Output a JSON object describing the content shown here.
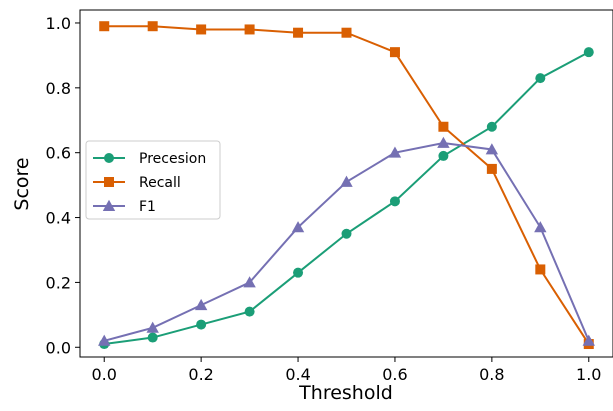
{
  "chart_data": {
    "type": "line",
    "title": "",
    "xlabel": "Threshold",
    "ylabel": "Score",
    "xlim": [
      -0.05,
      1.05
    ],
    "ylim": [
      -0.03,
      1.04
    ],
    "xticks": [
      "0.0",
      "0.2",
      "0.4",
      "0.6",
      "0.8",
      "1.0"
    ],
    "yticks": [
      "0.0",
      "0.2",
      "0.4",
      "0.6",
      "0.8",
      "1.0"
    ],
    "grid": false,
    "legend_position": "center-left",
    "x": [
      0.0,
      0.1,
      0.2,
      0.3,
      0.4,
      0.5,
      0.6,
      0.7,
      0.8,
      0.9,
      1.0
    ],
    "series": [
      {
        "name": "Precesion",
        "color": "#1b9e77",
        "marker": "circle",
        "values": [
          0.01,
          0.03,
          0.07,
          0.11,
          0.23,
          0.35,
          0.45,
          0.59,
          0.68,
          0.83,
          0.91
        ]
      },
      {
        "name": "Recall",
        "color": "#d95f02",
        "marker": "square",
        "values": [
          0.99,
          0.99,
          0.98,
          0.98,
          0.97,
          0.97,
          0.91,
          0.68,
          0.55,
          0.24,
          0.01
        ]
      },
      {
        "name": "F1",
        "color": "#7570b3",
        "marker": "triangle",
        "values": [
          0.02,
          0.06,
          0.13,
          0.2,
          0.37,
          0.51,
          0.6,
          0.63,
          0.61,
          0.37,
          0.02
        ]
      }
    ]
  }
}
